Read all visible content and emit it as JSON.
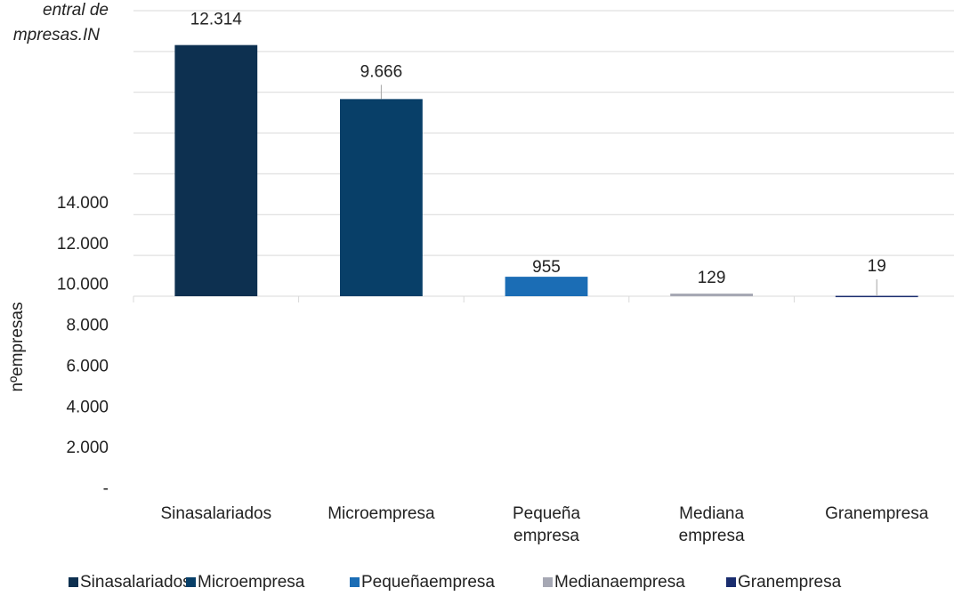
{
  "chart_data": {
    "type": "bar",
    "title": [
      "entral de",
      "mpresas.IN"
    ],
    "y_label": "nºempresas",
    "categories": [
      "Sinasalariados",
      "Microempresa",
      [
        "Pequeña",
        "empresa"
      ],
      [
        "Mediana",
        "empresa"
      ],
      "Granempresa"
    ],
    "series": [
      {
        "name": "Sinasalariados",
        "color": "#0d3050",
        "values": [
          12314,
          null,
          null,
          null,
          null
        ],
        "value_labels": [
          "12.314",
          null,
          null,
          null,
          null
        ]
      },
      {
        "name": "Microempresa",
        "color": "#083f68",
        "values": [
          null,
          9666,
          null,
          null,
          null
        ],
        "value_labels": [
          null,
          "9.666",
          null,
          null,
          null
        ]
      },
      {
        "name": "Pequeñaempresa",
        "color": "#1b6db5",
        "values": [
          null,
          null,
          955,
          null,
          null
        ],
        "value_labels": [
          null,
          null,
          "955",
          null,
          null
        ]
      },
      {
        "name": "Medianaempresa",
        "color": "#a6a8b4",
        "values": [
          null,
          null,
          null,
          129,
          null
        ],
        "value_labels": [
          null,
          null,
          null,
          "129",
          null
        ]
      },
      {
        "name": "Granempresa",
        "color": "#1a2d6e",
        "values": [
          null,
          null,
          null,
          null,
          19
        ],
        "value_labels": [
          null,
          null,
          null,
          null,
          "19"
        ]
      }
    ],
    "ylim": [
      0,
      14000
    ],
    "yticks": [
      {
        "value": 0,
        "label": "-"
      },
      {
        "value": 2000,
        "label": "2.000"
      },
      {
        "value": 4000,
        "label": "4.000"
      },
      {
        "value": 6000,
        "label": "6.000"
      },
      {
        "value": 8000,
        "label": "8.000"
      },
      {
        "value": 10000,
        "label": "10.000"
      },
      {
        "value": 12000,
        "label": "12.000"
      },
      {
        "value": 14000,
        "label": "14.000"
      }
    ],
    "grid": true
  }
}
